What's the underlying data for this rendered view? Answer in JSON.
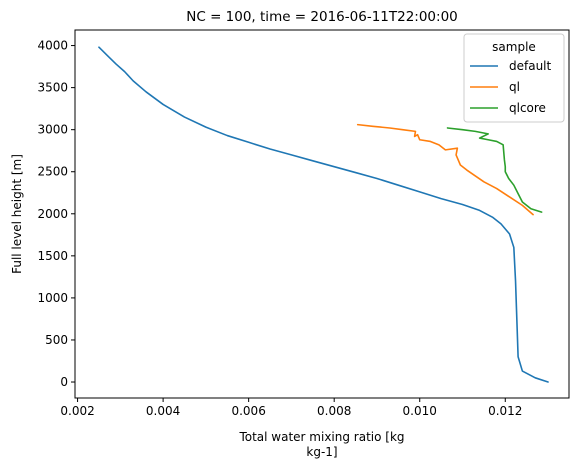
{
  "chart_data": {
    "type": "line",
    "title": "NC = 100, time = 2016-06-11T22:00:00",
    "xlabel_line1": "Total water mixing ratio [kg",
    "xlabel_line2": "kg-1]",
    "ylabel": "Full level height [m]",
    "xlim": [
      0.00194,
      0.01349
    ],
    "ylim": [
      -190,
      4185
    ],
    "xticks": [
      0.002,
      0.004,
      0.006,
      0.008,
      0.01,
      0.012
    ],
    "xtick_labels": [
      "0.002",
      "0.004",
      "0.006",
      "0.008",
      "0.010",
      "0.012"
    ],
    "yticks": [
      0,
      500,
      1000,
      1500,
      2000,
      2500,
      3000,
      3500,
      4000
    ],
    "ytick_labels": [
      "0",
      "500",
      "1000",
      "1500",
      "2000",
      "2500",
      "3000",
      "3500",
      "4000"
    ],
    "grid": false,
    "legend": {
      "title": "sample",
      "placement": "top-right"
    },
    "series": [
      {
        "name": "default",
        "color": "#1f77b4",
        "x": [
          0.013,
          0.0127,
          0.0124,
          0.0123,
          0.01228,
          0.01226,
          0.01224,
          0.01222,
          0.0122,
          0.0121,
          0.0119,
          0.0117,
          0.0114,
          0.011,
          0.0105,
          0.01,
          0.0095,
          0.009,
          0.0085,
          0.008,
          0.0075,
          0.007,
          0.0065,
          0.006,
          0.0055,
          0.005,
          0.0045,
          0.004,
          0.0036,
          0.0033,
          0.0031,
          0.0029,
          0.0027,
          0.0025
        ],
        "y": [
          0,
          50,
          130,
          300,
          600,
          900,
          1200,
          1400,
          1600,
          1760,
          1880,
          1960,
          2040,
          2110,
          2180,
          2260,
          2340,
          2420,
          2490,
          2560,
          2630,
          2700,
          2770,
          2850,
          2930,
          3030,
          3150,
          3300,
          3450,
          3580,
          3690,
          3780,
          3880,
          3980
        ]
      },
      {
        "name": "ql",
        "color": "#ff7f0e",
        "x": [
          0.01265,
          0.0124,
          0.0121,
          0.0118,
          0.0115,
          0.0113,
          0.0111,
          0.01095,
          0.0109,
          0.01085,
          0.01088,
          0.0106,
          0.01045,
          0.01025,
          0.01,
          0.00995,
          0.00988,
          0.0099,
          0.0096,
          0.0093,
          0.0089,
          0.00855
        ],
        "y": [
          1990,
          2100,
          2200,
          2300,
          2380,
          2450,
          2520,
          2580,
          2640,
          2700,
          2780,
          2760,
          2820,
          2860,
          2880,
          2940,
          2920,
          2980,
          3000,
          3020,
          3040,
          3060
        ]
      },
      {
        "name": "qlcore",
        "color": "#2ca02c",
        "x": [
          0.01285,
          0.0126,
          0.0124,
          0.0123,
          0.0122,
          0.01208,
          0.012,
          0.012,
          0.01198,
          0.01195,
          0.0118,
          0.0116,
          0.0114,
          0.0116,
          0.0113,
          0.011,
          0.01065
        ],
        "y": [
          2020,
          2060,
          2140,
          2240,
          2340,
          2420,
          2500,
          2560,
          2640,
          2820,
          2860,
          2880,
          2900,
          2950,
          2980,
          3000,
          3020
        ]
      }
    ]
  }
}
